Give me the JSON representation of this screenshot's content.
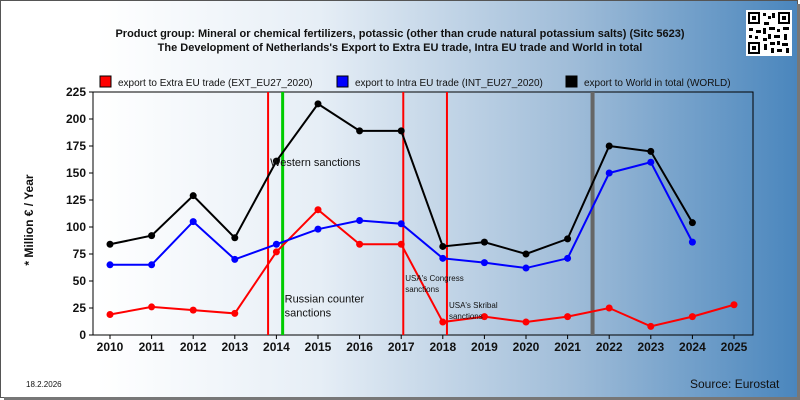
{
  "title_line1": "Product group: Mineral or chemical fertilizers, potassic (other than crude natural potassium salts) (Sitc 5623)",
  "title_line2": "The Development of Netherlands's Export to Extra EU trade, Intra EU trade and World in total",
  "y_axis_label": "* Million € / Year",
  "date_text": "18.2.2026",
  "source_text": "Source: Eurostat",
  "qr_icon": "qr-code-icon",
  "colors": {
    "extra": "#ff0000",
    "intra": "#0000ff",
    "world": "#000000",
    "red_line": "#ff0000",
    "green_line": "#00cc00",
    "gray_line": "#666666"
  },
  "chart_data": {
    "type": "line",
    "x": [
      2010,
      2011,
      2012,
      2013,
      2014,
      2015,
      2016,
      2017,
      2018,
      2019,
      2020,
      2021,
      2022,
      2023,
      2024,
      2025
    ],
    "xlim": [
      2010,
      2025
    ],
    "ylim": [
      0,
      225
    ],
    "yticks": [
      0,
      25,
      50,
      75,
      100,
      125,
      150,
      175,
      200,
      225
    ],
    "grid": false,
    "legend_position": "top",
    "series": [
      {
        "key": "extra",
        "name": "export to Extra EU trade (EXT_EU27_2020)",
        "values": [
          19,
          26,
          23,
          20,
          77,
          116,
          84,
          84,
          12,
          17,
          12,
          17,
          25,
          8,
          17,
          28
        ]
      },
      {
        "key": "intra",
        "name": "export to Intra EU trade (INT_EU27_2020)",
        "values": [
          65,
          65,
          105,
          70,
          84,
          98,
          106,
          103,
          71,
          67,
          62,
          71,
          150,
          160,
          86,
          null
        ]
      },
      {
        "key": "world",
        "name": "export to World in total (WORLD)",
        "values": [
          84,
          92,
          129,
          90,
          161,
          214,
          189,
          189,
          82,
          86,
          75,
          89,
          175,
          170,
          104,
          null
        ]
      }
    ],
    "annotations": [
      {
        "label": "Western sanctions",
        "x": 2013.8,
        "line_color": "red",
        "label_y": 160
      },
      {
        "label": "Russian counter sanctions",
        "x": 2014.15,
        "line_color": "green",
        "label_y": 30
      },
      {
        "label": "USA's Congress sanctions",
        "x": 2017.05,
        "line_color": "red",
        "label_y": 50
      },
      {
        "label": "USA's Skribal sanctions",
        "x": 2018.1,
        "line_color": "red",
        "label_y": 25
      },
      {
        "label": "",
        "x": 2021.6,
        "line_color": "gray",
        "label_y": null
      }
    ]
  }
}
